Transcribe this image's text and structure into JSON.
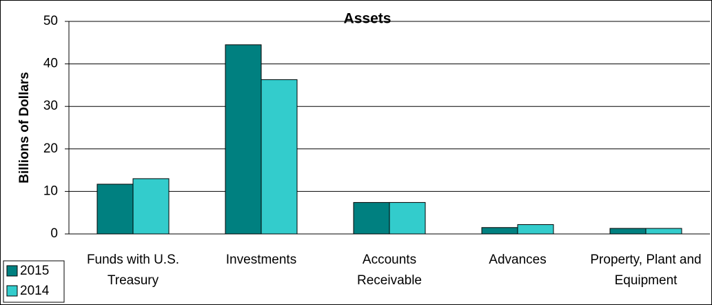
{
  "chart_data": {
    "type": "bar",
    "title": "Assets",
    "ylabel": "Billions of Dollars",
    "categories": [
      "Funds with U.S. Treasury",
      "Investments",
      "Accounts Receivable",
      "Advances",
      "Property, Plant and Equipment"
    ],
    "series": [
      {
        "name": "2015",
        "color": "#008080",
        "values": [
          11.7,
          44.5,
          7.4,
          1.5,
          1.3
        ]
      },
      {
        "name": "2014",
        "color": "#33cccc",
        "values": [
          13.0,
          36.3,
          7.4,
          2.2,
          1.3
        ]
      }
    ],
    "ylim": [
      0,
      50
    ],
    "yticks": [
      0,
      10,
      20,
      30,
      40,
      50
    ],
    "grid": true,
    "legend": "bottom-left"
  }
}
